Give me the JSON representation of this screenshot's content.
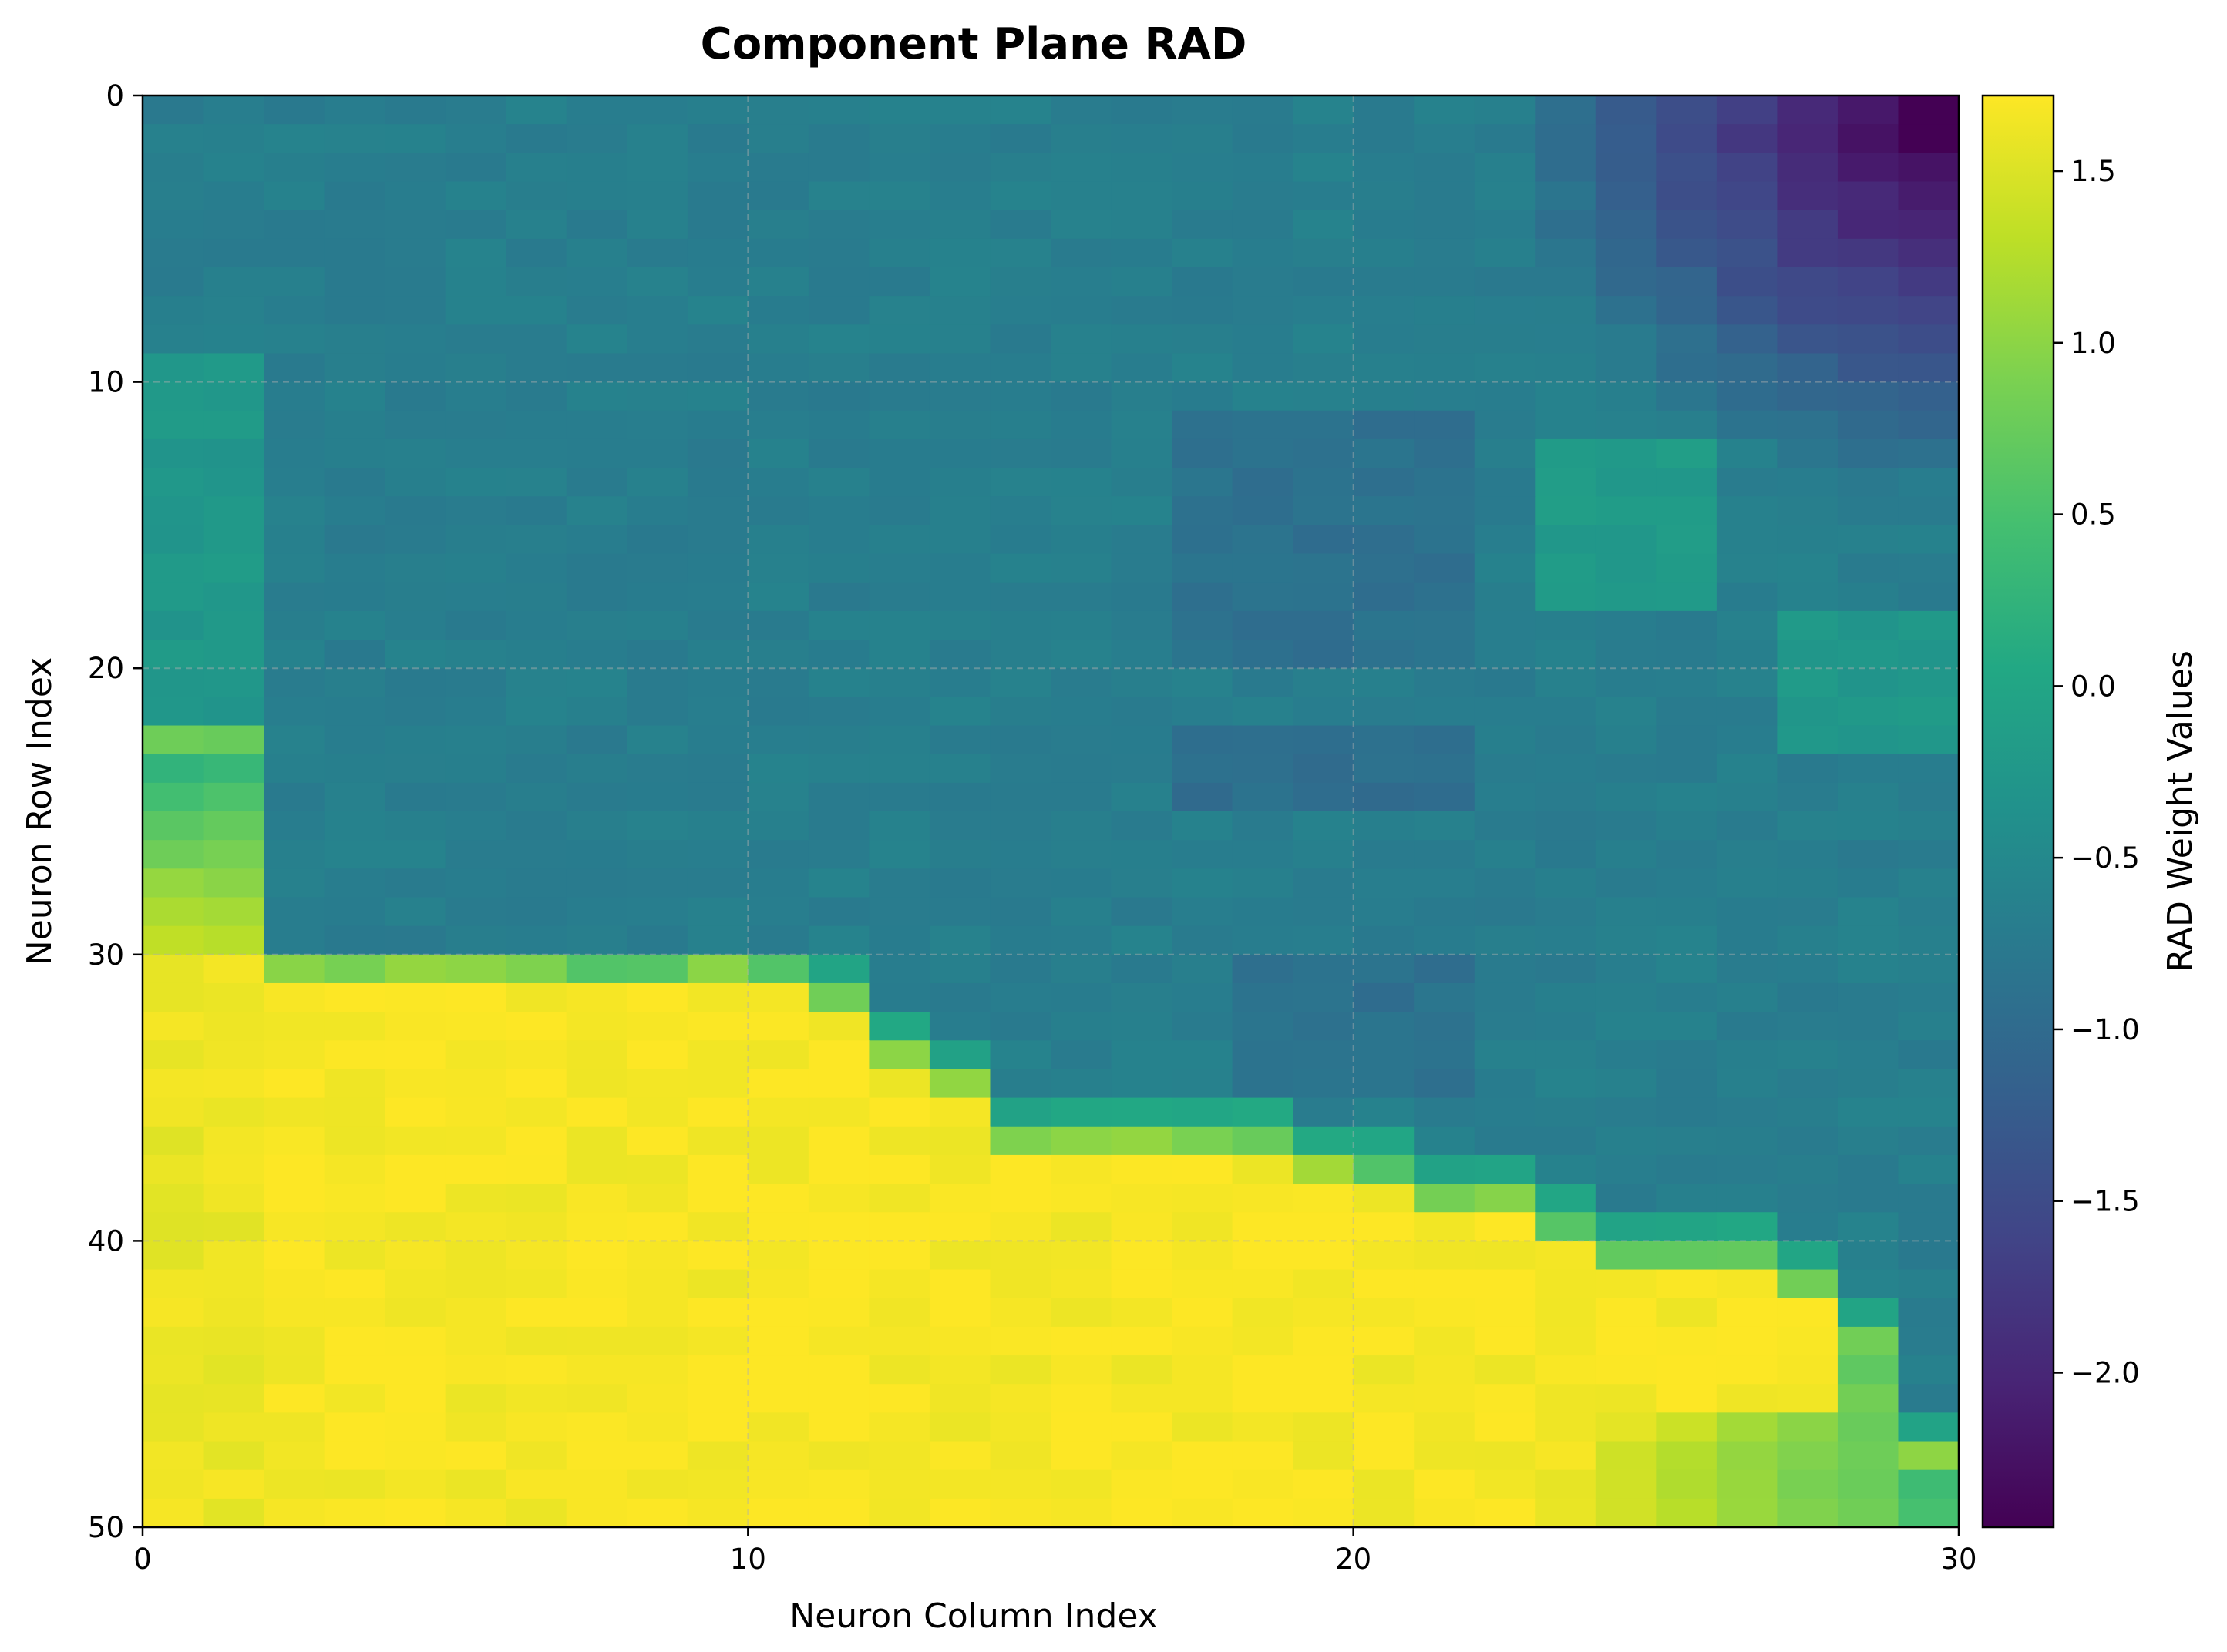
{
  "chart_data": {
    "type": "heatmap",
    "title": "Component Plane RAD",
    "xlabel": "Neuron Column Index",
    "ylabel": "Neuron Row Index",
    "colorbar_label": "RAD Weight Values",
    "colormap": "viridis",
    "xlim": [
      0,
      30
    ],
    "ylim": [
      50,
      0
    ],
    "x_ticks": [
      0,
      10,
      20,
      30
    ],
    "y_ticks": [
      0,
      10,
      20,
      30,
      40,
      50
    ],
    "x_tick_labels": [
      "0",
      "10",
      "20",
      "30"
    ],
    "y_tick_labels": [
      "0",
      "10",
      "20",
      "30",
      "40",
      "50"
    ],
    "colorbar_range": [
      -2.45,
      1.72
    ],
    "colorbar_ticks": [
      1.5,
      1.0,
      0.5,
      0.0,
      -0.5,
      -1.0,
      -1.5,
      -2.0
    ],
    "colorbar_tick_labels": [
      "1.5",
      "1.0",
      "0.5",
      "0.0",
      "−0.5",
      "−1.0",
      "−1.5",
      "−2.0"
    ],
    "grid": true,
    "n_cols": 30,
    "n_rows": 50,
    "description_of_values": "Top-right corner low (about -2.4); upper/middle region around -0.5 to -0.9; lower-left region high (about 1.7) bounded by a staircase edge; bottom-right corner moderate (0.4 to 1.0)."
  }
}
